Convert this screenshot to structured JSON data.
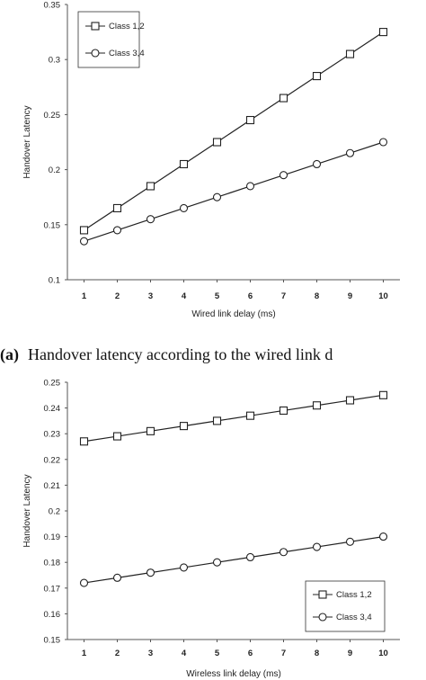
{
  "figure": {
    "panel_a_caption_tag": "(a)",
    "panel_a_caption": "Handover latency according to the wired link d"
  },
  "chart_data": [
    {
      "type": "line",
      "title": "",
      "xlabel": "Wired link delay (ms)",
      "ylabel": "Handover Latency",
      "x": [
        1,
        2,
        3,
        4,
        5,
        6,
        7,
        8,
        9,
        10
      ],
      "xlim": [
        0.5,
        10.5
      ],
      "ylim": [
        0.1,
        0.35
      ],
      "yticks": [
        0.1,
        0.15,
        0.2,
        0.25,
        0.3,
        0.35
      ],
      "ytick_labels": [
        "0.1",
        "0.15",
        "0.2",
        "0.25",
        "0.3",
        "0.35"
      ],
      "xtick_bold": true,
      "grid": false,
      "legend_position": "top-left",
      "series": [
        {
          "name": "Class 1,2",
          "marker": "square",
          "values": [
            0.145,
            0.165,
            0.185,
            0.205,
            0.225,
            0.245,
            0.265,
            0.285,
            0.305,
            0.325
          ]
        },
        {
          "name": "Class 3,4",
          "marker": "circle",
          "values": [
            0.135,
            0.145,
            0.155,
            0.165,
            0.175,
            0.185,
            0.195,
            0.205,
            0.215,
            0.225
          ]
        }
      ]
    },
    {
      "type": "line",
      "title": "",
      "xlabel": "Wireless link delay (ms)",
      "ylabel": "Handover Latency",
      "x": [
        1,
        2,
        3,
        4,
        5,
        6,
        7,
        8,
        9,
        10
      ],
      "xlim": [
        0.5,
        10.5
      ],
      "ylim": [
        0.15,
        0.25
      ],
      "yticks": [
        0.15,
        0.16,
        0.17,
        0.18,
        0.19,
        0.2,
        0.21,
        0.22,
        0.23,
        0.24,
        0.25
      ],
      "ytick_labels": [
        "0.15",
        "0.16",
        "0.17",
        "0.18",
        "0.19",
        "0.2",
        "0.21",
        "0.22",
        "0.23",
        "0.24",
        "0.25"
      ],
      "xtick_bold": true,
      "grid": false,
      "legend_position": "bottom-right",
      "series": [
        {
          "name": "Class 1,2",
          "marker": "square",
          "values": [
            0.227,
            0.229,
            0.231,
            0.233,
            0.235,
            0.237,
            0.239,
            0.241,
            0.243,
            0.245
          ]
        },
        {
          "name": "Class 3,4",
          "marker": "circle",
          "values": [
            0.172,
            0.174,
            0.176,
            0.178,
            0.18,
            0.182,
            0.184,
            0.186,
            0.188,
            0.19
          ]
        }
      ]
    }
  ]
}
